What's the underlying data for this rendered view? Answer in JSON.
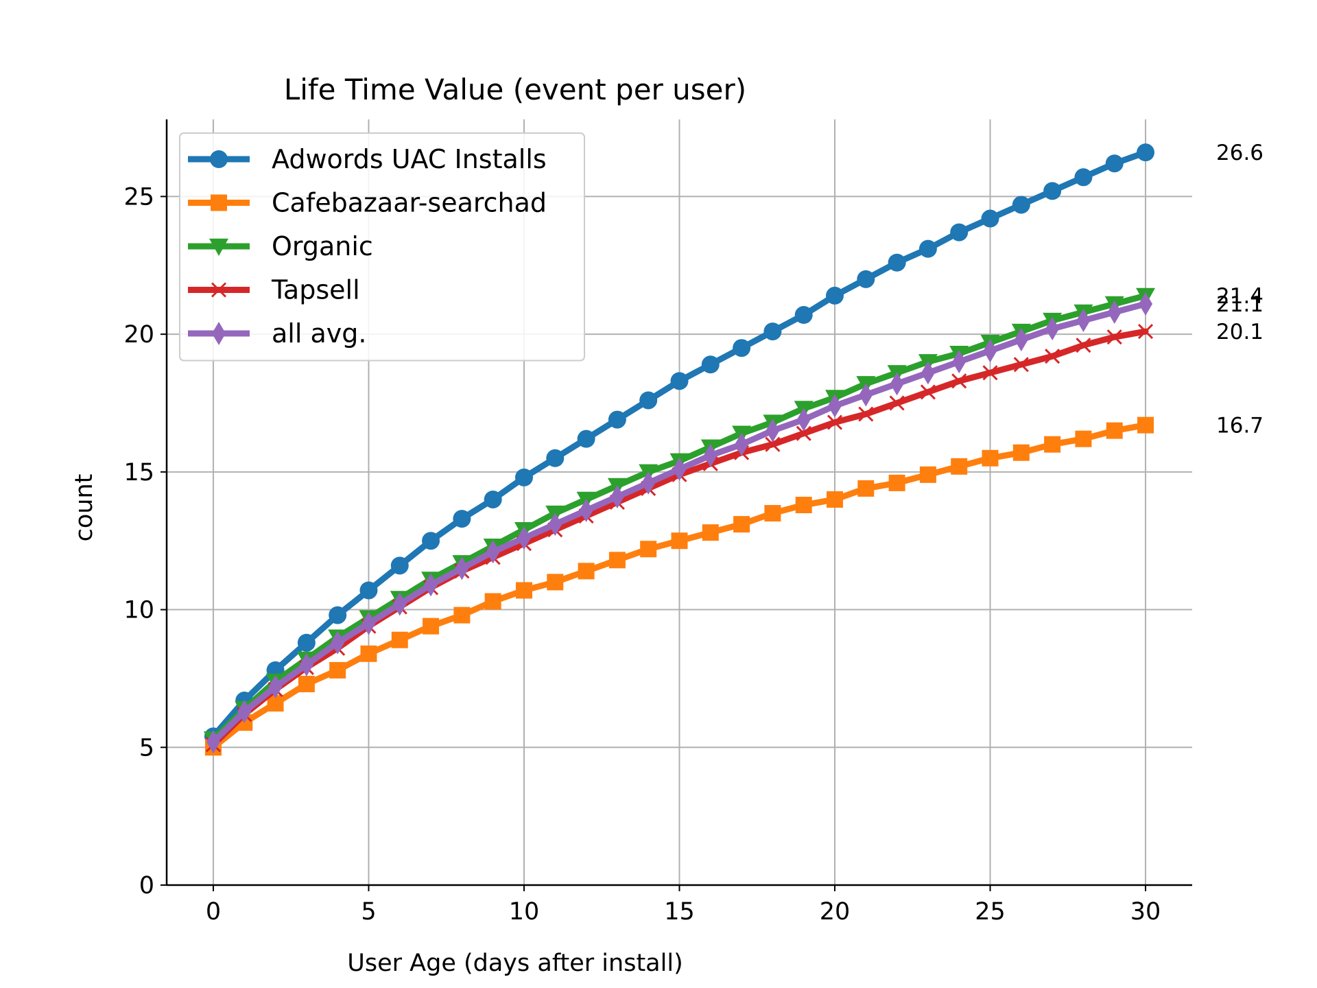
{
  "chart_data": {
    "type": "line",
    "title": "Life Time Value (event per user)",
    "xlabel": "User Age (days after install)",
    "ylabel": "count",
    "xlim": [
      -1.5,
      31.5
    ],
    "ylim": [
      0,
      27.8
    ],
    "xticks": [
      0,
      5,
      10,
      15,
      20,
      25,
      30
    ],
    "yticks": [
      0,
      5,
      10,
      15,
      20,
      25
    ],
    "grid": true,
    "legend_position": "upper-left",
    "x": [
      0,
      1,
      2,
      3,
      4,
      5,
      6,
      7,
      8,
      9,
      10,
      11,
      12,
      13,
      14,
      15,
      16,
      17,
      18,
      19,
      20,
      21,
      22,
      23,
      24,
      25,
      26,
      27,
      28,
      29,
      30
    ],
    "series": [
      {
        "name": "Adwords UAC Installs",
        "color": "#1f77b4",
        "marker": "circle",
        "values": [
          5.4,
          6.7,
          7.8,
          8.8,
          9.8,
          10.7,
          11.6,
          12.5,
          13.3,
          14.0,
          14.8,
          15.5,
          16.2,
          16.9,
          17.6,
          18.3,
          18.9,
          19.5,
          20.1,
          20.7,
          21.4,
          22.0,
          22.6,
          23.1,
          23.7,
          24.2,
          24.7,
          25.2,
          25.7,
          26.2,
          26.6
        ]
      },
      {
        "name": "Cafebazaar-searchad",
        "color": "#ff7f0e",
        "marker": "square",
        "values": [
          5.0,
          5.9,
          6.6,
          7.3,
          7.8,
          8.4,
          8.9,
          9.4,
          9.8,
          10.3,
          10.7,
          11.0,
          11.4,
          11.8,
          12.2,
          12.5,
          12.8,
          13.1,
          13.5,
          13.8,
          14.0,
          14.4,
          14.6,
          14.9,
          15.2,
          15.5,
          15.7,
          16.0,
          16.2,
          16.5,
          16.7
        ]
      },
      {
        "name": "Organic",
        "color": "#2ca02c",
        "marker": "triangle-down",
        "values": [
          5.3,
          6.4,
          7.4,
          8.2,
          9.0,
          9.7,
          10.4,
          11.1,
          11.7,
          12.3,
          12.9,
          13.5,
          14.0,
          14.5,
          15.0,
          15.4,
          15.9,
          16.4,
          16.8,
          17.3,
          17.7,
          18.2,
          18.6,
          19.0,
          19.3,
          19.7,
          20.1,
          20.5,
          20.8,
          21.1,
          21.4
        ]
      },
      {
        "name": "Tapsell",
        "color": "#d62728",
        "marker": "x",
        "values": [
          5.1,
          6.2,
          7.1,
          7.9,
          8.6,
          9.4,
          10.1,
          10.8,
          11.4,
          11.9,
          12.4,
          12.9,
          13.4,
          13.9,
          14.4,
          14.9,
          15.3,
          15.7,
          16.0,
          16.4,
          16.8,
          17.1,
          17.5,
          17.9,
          18.3,
          18.6,
          18.9,
          19.2,
          19.6,
          19.9,
          20.1
        ]
      },
      {
        "name": "all avg.",
        "color": "#9467bd",
        "marker": "diamond",
        "values": [
          5.2,
          6.3,
          7.2,
          8.0,
          8.8,
          9.5,
          10.2,
          10.9,
          11.5,
          12.1,
          12.6,
          13.1,
          13.6,
          14.1,
          14.6,
          15.1,
          15.6,
          16.0,
          16.5,
          16.9,
          17.4,
          17.8,
          18.2,
          18.6,
          19.0,
          19.4,
          19.8,
          20.2,
          20.5,
          20.8,
          21.1
        ]
      }
    ],
    "end_labels": [
      {
        "text": "26.6",
        "value": 26.6
      },
      {
        "text": "21.4",
        "value": 21.4
      },
      {
        "text": "21.1",
        "value": 21.1
      },
      {
        "text": "20.1",
        "value": 20.1
      },
      {
        "text": "16.7",
        "value": 16.7
      }
    ]
  }
}
